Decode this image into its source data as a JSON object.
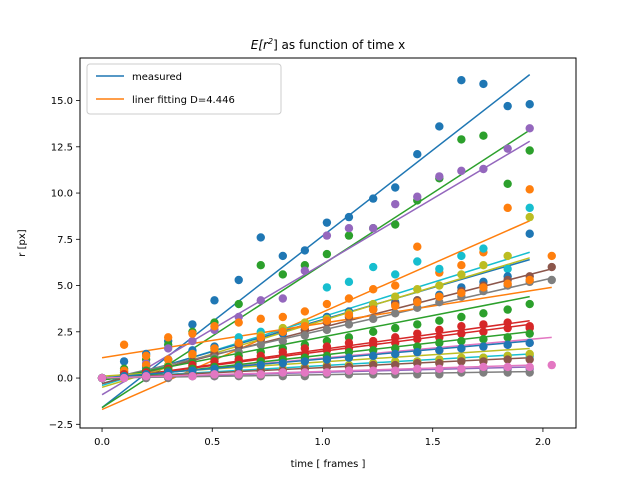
{
  "chart_data": {
    "type": "scatter",
    "title_prefix": "E[r",
    "title_sup": "2",
    "title_suffix": "] as function of time x",
    "xlabel": "time [ frames ]",
    "ylabel": "r [px]",
    "xlim": [
      -0.1,
      2.15
    ],
    "ylim": [
      -2.7,
      17.3
    ],
    "xticks": [
      0.0,
      0.5,
      1.0,
      1.5,
      2.0
    ],
    "xtick_labels": [
      "0.0",
      "0.5",
      "1.0",
      "1.5",
      "2.0"
    ],
    "yticks": [
      -2.5,
      0.0,
      2.5,
      5.0,
      7.5,
      10.0,
      12.5,
      15.0
    ],
    "ytick_labels": [
      "−2.5",
      "0.0",
      "2.5",
      "5.0",
      "7.5",
      "10.0",
      "12.5",
      "15.0"
    ],
    "legend": {
      "position": "upper-left",
      "entries": [
        {
          "label": "measured",
          "color": "#1f77b4"
        },
        {
          "label": "liner fitting D=4.446",
          "color": "#ff7f0e"
        }
      ]
    },
    "grid": false,
    "series": [
      {
        "color": "#1f77b4",
        "x": [
          0.0,
          0.1,
          0.2,
          0.3,
          0.41,
          0.51,
          0.62,
          0.72,
          0.82,
          0.92,
          1.02,
          1.12,
          1.23,
          1.33,
          1.43,
          1.53,
          1.63,
          1.73,
          1.84,
          1.94
        ],
        "y": [
          0.0,
          0.9,
          1.3,
          2.0,
          2.9,
          4.2,
          5.3,
          7.6,
          6.6,
          6.9,
          8.4,
          8.7,
          9.7,
          10.3,
          12.1,
          13.6,
          16.1,
          15.9,
          14.7,
          14.8
        ],
        "fit": [
          -1.6,
          16.4
        ]
      },
      {
        "color": "#2ca02c",
        "x": [
          0.0,
          0.1,
          0.2,
          0.3,
          0.41,
          0.51,
          0.62,
          0.72,
          0.82,
          0.92,
          1.02,
          1.12,
          1.23,
          1.33,
          1.43,
          1.53,
          1.63,
          1.73,
          1.84,
          1.94
        ],
        "y": [
          0.0,
          0.5,
          1.0,
          1.8,
          2.5,
          3.0,
          4.0,
          6.1,
          5.6,
          6.1,
          6.7,
          7.7,
          8.1,
          8.3,
          9.6,
          10.8,
          12.9,
          13.1,
          10.5,
          12.3
        ],
        "fit": [
          -1.6,
          13.4
        ]
      },
      {
        "color": "#9467bd",
        "x": [
          0.0,
          0.1,
          0.2,
          0.3,
          0.41,
          0.51,
          0.62,
          0.72,
          0.82,
          0.92,
          1.02,
          1.12,
          1.23,
          1.33,
          1.43,
          1.53,
          1.63,
          1.73,
          1.84,
          1.94
        ],
        "y": [
          0.0,
          0.3,
          0.8,
          1.6,
          2.0,
          2.6,
          3.3,
          4.2,
          4.3,
          5.8,
          7.7,
          8.1,
          8.1,
          9.4,
          9.8,
          10.9,
          11.2,
          11.3,
          12.4,
          13.5
        ],
        "fit": [
          -0.9,
          12.8
        ]
      },
      {
        "color": "#ff7f0e",
        "x": [
          0.0,
          0.1,
          0.2,
          0.3,
          0.41,
          0.51,
          0.62,
          0.72,
          0.82,
          0.92,
          1.02,
          1.12,
          1.23,
          1.33,
          1.43,
          1.53,
          1.63,
          1.73,
          1.84,
          1.94
        ],
        "y": [
          0.0,
          1.8,
          1.2,
          2.2,
          2.4,
          2.8,
          3.0,
          3.2,
          3.3,
          3.6,
          4.0,
          4.3,
          4.8,
          5.0,
          7.1,
          5.7,
          6.1,
          6.8,
          9.2,
          10.2
        ],
        "fit": [
          -1.7,
          8.5
        ]
      },
      {
        "color": "#17becf",
        "x": [
          0.0,
          0.1,
          0.2,
          0.3,
          0.41,
          0.51,
          0.62,
          0.72,
          0.82,
          0.92,
          1.02,
          1.12,
          1.23,
          1.33,
          1.43,
          1.53,
          1.63,
          1.73,
          1.84,
          1.94
        ],
        "y": [
          0.0,
          0.2,
          0.5,
          1.0,
          1.4,
          1.6,
          2.2,
          2.5,
          2.6,
          2.9,
          4.9,
          5.2,
          6.0,
          5.6,
          6.3,
          5.9,
          6.6,
          7.0,
          5.9,
          9.2
        ],
        "fit": [
          -0.4,
          6.8
        ]
      },
      {
        "color": "#1f77b4",
        "x": [
          0.0,
          0.1,
          0.2,
          0.3,
          0.41,
          0.51,
          0.62,
          0.72,
          0.82,
          0.92,
          1.02,
          1.12,
          1.23,
          1.33,
          1.43,
          1.53,
          1.63,
          1.73,
          1.84,
          1.94
        ],
        "y": [
          0.0,
          0.3,
          0.6,
          1.0,
          1.5,
          1.7,
          1.9,
          2.1,
          2.4,
          2.6,
          3.3,
          3.6,
          3.9,
          4.1,
          4.2,
          4.5,
          4.9,
          5.2,
          5.5,
          7.8
        ],
        "fit": [
          -0.3,
          6.4
        ]
      },
      {
        "color": "#bcbd22",
        "x": [
          0.0,
          0.1,
          0.2,
          0.3,
          0.41,
          0.51,
          0.62,
          0.72,
          0.82,
          0.92,
          1.02,
          1.12,
          1.23,
          1.33,
          1.43,
          1.53,
          1.63,
          1.73,
          1.84,
          1.94
        ],
        "y": [
          0.0,
          0.2,
          0.4,
          0.7,
          1.2,
          1.5,
          1.8,
          2.3,
          2.7,
          3.0,
          3.2,
          3.5,
          4.0,
          4.4,
          4.8,
          5.0,
          5.6,
          6.1,
          6.6,
          8.7
        ],
        "fit": [
          -0.5,
          6.5
        ]
      },
      {
        "color": "#8c564b",
        "x": [
          0.0,
          0.1,
          0.2,
          0.3,
          0.41,
          0.51,
          0.62,
          0.72,
          0.82,
          0.92,
          1.02,
          1.12,
          1.23,
          1.33,
          1.43,
          1.53,
          1.63,
          1.73,
          1.84,
          1.94,
          2.04
        ],
        "y": [
          0.0,
          0.1,
          0.3,
          0.6,
          0.9,
          1.3,
          1.7,
          2.1,
          2.5,
          2.6,
          3.0,
          3.3,
          3.7,
          4.0,
          4.2,
          4.4,
          4.7,
          5.0,
          5.3,
          5.5,
          6.0
        ],
        "fit": [
          -0.3,
          5.9
        ]
      },
      {
        "color": "#7f7f7f",
        "x": [
          0.0,
          0.1,
          0.2,
          0.3,
          0.41,
          0.51,
          0.62,
          0.72,
          0.82,
          0.92,
          1.02,
          1.12,
          1.23,
          1.33,
          1.43,
          1.53,
          1.63,
          1.73,
          1.84,
          1.94,
          2.04
        ],
        "y": [
          0.0,
          0.1,
          0.3,
          0.5,
          0.8,
          1.1,
          1.4,
          1.8,
          2.0,
          2.3,
          2.6,
          2.9,
          3.2,
          3.5,
          3.8,
          4.1,
          4.4,
          4.7,
          5.0,
          5.2,
          5.3
        ],
        "fit": [
          -0.1,
          5.4
        ]
      },
      {
        "color": "#ff7f0e",
        "x": [
          0.0,
          0.1,
          0.2,
          0.3,
          0.41,
          0.51,
          0.62,
          0.72,
          0.82,
          0.92,
          1.02,
          1.12,
          1.23,
          1.33,
          1.43,
          1.53,
          1.63,
          1.73,
          1.84,
          1.94,
          2.04
        ],
        "y": [
          0.0,
          0.4,
          0.7,
          1.0,
          1.3,
          1.6,
          1.9,
          2.2,
          2.5,
          2.8,
          3.1,
          3.4,
          3.7,
          3.9,
          4.1,
          4.4,
          4.6,
          4.9,
          5.1,
          5.3,
          6.6
        ],
        "fit": [
          1.1,
          4.9
        ]
      },
      {
        "color": "#2ca02c",
        "x": [
          0.0,
          0.1,
          0.2,
          0.3,
          0.41,
          0.51,
          0.62,
          0.72,
          0.82,
          0.92,
          1.02,
          1.12,
          1.23,
          1.33,
          1.43,
          1.53,
          1.63,
          1.73,
          1.84,
          1.94
        ],
        "y": [
          0.0,
          0.2,
          0.4,
          0.6,
          0.8,
          1.0,
          1.2,
          1.4,
          1.6,
          1.8,
          2.0,
          2.2,
          2.5,
          2.7,
          2.9,
          3.1,
          3.3,
          3.5,
          3.7,
          4.0
        ],
        "fit": [
          -0.1,
          4.4
        ]
      },
      {
        "color": "#d62728",
        "x": [
          0.0,
          0.1,
          0.2,
          0.3,
          0.41,
          0.51,
          0.62,
          0.72,
          0.82,
          0.92,
          1.02,
          1.12,
          1.23,
          1.33,
          1.43,
          1.53,
          1.63,
          1.73,
          1.84,
          1.94
        ],
        "y": [
          0.0,
          0.2,
          0.3,
          0.5,
          0.7,
          0.9,
          1.0,
          1.2,
          1.4,
          1.6,
          1.7,
          1.9,
          2.0,
          2.2,
          2.4,
          2.6,
          2.8,
          2.9,
          3.0,
          2.7
        ],
        "fit": [
          -0.1,
          3.1
        ]
      },
      {
        "color": "#e377c2",
        "x": [
          0.0,
          0.1,
          0.2,
          0.3,
          0.41,
          0.51,
          0.62,
          0.72,
          0.82,
          0.92,
          1.02,
          1.12,
          1.23,
          1.33,
          1.43,
          1.53,
          1.63,
          1.73,
          1.84,
          1.94,
          2.04
        ],
        "y": [
          0.0,
          0.1,
          0.2,
          0.3,
          0.4,
          0.5,
          0.6,
          0.7,
          0.8,
          0.9,
          1.0,
          1.1,
          1.2,
          1.3,
          1.4,
          1.5,
          1.6,
          1.7,
          1.8,
          1.9,
          0.7
        ],
        "fit": [
          0.0,
          2.2
        ]
      },
      {
        "color": "#17becf",
        "x": [
          0.0,
          0.1,
          0.2,
          0.3,
          0.41,
          0.51,
          0.62,
          0.72,
          0.82,
          0.92,
          1.02,
          1.12,
          1.23,
          1.33,
          1.43,
          1.53,
          1.63,
          1.73,
          1.84,
          1.94
        ],
        "y": [
          0.0,
          0.0,
          0.1,
          0.2,
          0.2,
          0.3,
          0.4,
          0.4,
          0.5,
          0.6,
          0.6,
          0.7,
          0.8,
          0.8,
          0.9,
          1.0,
          1.0,
          1.1,
          1.2,
          1.2
        ],
        "fit": [
          0.0,
          1.3
        ]
      },
      {
        "color": "#bcbd22",
        "x": [
          0.0,
          0.1,
          0.2,
          0.3,
          0.41,
          0.51,
          0.62,
          0.72,
          0.82,
          0.92,
          1.02,
          1.12,
          1.23,
          1.33,
          1.43,
          1.53,
          1.63,
          1.73,
          1.84,
          1.94
        ],
        "y": [
          0.0,
          0.1,
          0.1,
          0.2,
          0.3,
          0.3,
          0.4,
          0.5,
          0.5,
          0.6,
          0.7,
          0.7,
          0.8,
          0.9,
          0.9,
          1.0,
          1.1,
          1.1,
          1.2,
          1.3
        ],
        "fit": [
          0.1,
          1.6
        ]
      },
      {
        "color": "#9467bd",
        "x": [
          0.0,
          0.1,
          0.2,
          0.3,
          0.41,
          0.51,
          0.62,
          0.72,
          0.82,
          0.92,
          1.02,
          1.12,
          1.23,
          1.33,
          1.43,
          1.53,
          1.63,
          1.73,
          1.84,
          1.94
        ],
        "y": [
          0.0,
          0.0,
          0.0,
          0.1,
          0.1,
          0.1,
          0.2,
          0.2,
          0.2,
          0.3,
          0.3,
          0.3,
          0.3,
          0.4,
          0.4,
          0.4,
          0.5,
          0.5,
          0.5,
          0.5
        ],
        "fit": [
          0.0,
          0.6
        ]
      },
      {
        "color": "#8c564b",
        "x": [
          0.0,
          0.1,
          0.2,
          0.3,
          0.41,
          0.51,
          0.62,
          0.72,
          0.82,
          0.92,
          1.02,
          1.12,
          1.23,
          1.33,
          1.43,
          1.53,
          1.63,
          1.73,
          1.84,
          1.94
        ],
        "y": [
          0.0,
          0.1,
          0.1,
          0.2,
          0.2,
          0.3,
          0.3,
          0.4,
          0.4,
          0.5,
          0.6,
          0.6,
          0.7,
          0.7,
          0.8,
          0.8,
          0.9,
          0.9,
          1.0,
          1.0
        ],
        "fit": [
          0.0,
          1.1
        ]
      },
      {
        "color": "#d62728",
        "x": [
          0.0,
          0.1,
          0.2,
          0.3,
          0.41,
          0.51,
          0.62,
          0.72,
          0.82,
          0.92,
          1.02,
          1.12,
          1.23,
          1.33,
          1.43,
          1.53,
          1.63,
          1.73,
          1.84,
          1.94
        ],
        "y": [
          0.0,
          0.1,
          0.3,
          0.4,
          0.6,
          0.7,
          0.9,
          1.0,
          1.2,
          1.3,
          1.5,
          1.6,
          1.8,
          1.9,
          2.1,
          2.2,
          2.4,
          2.5,
          2.7,
          2.8
        ],
        "fit": [
          -0.1,
          2.9
        ]
      },
      {
        "color": "#7f7f7f",
        "x": [
          0.0,
          0.1,
          0.2,
          0.3,
          0.41,
          0.51,
          0.62,
          0.72,
          0.82,
          0.92,
          1.02,
          1.12,
          1.23,
          1.33,
          1.43,
          1.53,
          1.63,
          1.73,
          1.84,
          1.94
        ],
        "y": [
          0.0,
          0.0,
          0.0,
          0.0,
          0.1,
          0.1,
          0.1,
          0.1,
          0.1,
          0.1,
          0.2,
          0.2,
          0.2,
          0.2,
          0.2,
          0.2,
          0.3,
          0.3,
          0.3,
          0.3
        ],
        "fit": [
          0.0,
          0.35
        ]
      },
      {
        "color": "#2ca02c",
        "x": [
          0.0,
          0.1,
          0.2,
          0.3,
          0.41,
          0.51,
          0.62,
          0.72,
          0.82,
          0.92,
          1.02,
          1.12,
          1.23,
          1.33,
          1.43,
          1.53,
          1.63,
          1.73,
          1.84,
          1.94
        ],
        "y": [
          0.0,
          0.1,
          0.2,
          0.4,
          0.5,
          0.6,
          0.7,
          0.9,
          1.0,
          1.1,
          1.2,
          1.4,
          1.5,
          1.6,
          1.7,
          1.9,
          2.0,
          2.1,
          2.2,
          2.4
        ],
        "fit": [
          -0.1,
          2.5
        ]
      },
      {
        "color": "#1f77b4",
        "x": [
          0.0,
          0.1,
          0.2,
          0.3,
          0.41,
          0.51,
          0.62,
          0.72,
          0.82,
          0.92,
          1.02,
          1.12,
          1.23,
          1.33,
          1.43,
          1.53,
          1.63,
          1.73,
          1.84,
          1.94
        ],
        "y": [
          0.0,
          0.1,
          0.2,
          0.3,
          0.4,
          0.5,
          0.6,
          0.7,
          0.8,
          0.9,
          1.0,
          1.1,
          1.2,
          1.3,
          1.4,
          1.5,
          1.6,
          1.7,
          1.8,
          1.9
        ],
        "fit": [
          0.0,
          2.0
        ]
      },
      {
        "color": "#e377c2",
        "x": [
          0.0,
          0.1,
          0.2,
          0.3,
          0.41,
          0.51,
          0.62,
          0.72,
          0.82,
          0.92,
          1.02,
          1.12,
          1.23,
          1.33,
          1.43,
          1.53,
          1.63,
          1.73,
          1.84,
          1.94
        ],
        "y": [
          0.0,
          0.0,
          0.1,
          0.1,
          0.1,
          0.2,
          0.2,
          0.2,
          0.3,
          0.3,
          0.3,
          0.4,
          0.4,
          0.4,
          0.5,
          0.5,
          0.5,
          0.6,
          0.6,
          0.6
        ],
        "fit": [
          0.0,
          0.7
        ]
      }
    ]
  }
}
